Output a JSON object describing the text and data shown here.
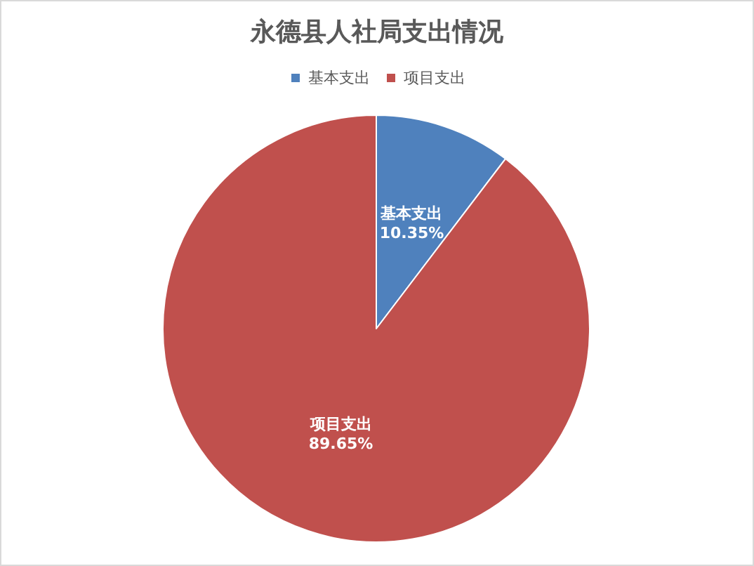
{
  "chart_data": {
    "type": "pie",
    "title": "永德县人社局支出情况",
    "categories": [
      "基本支出",
      "项目支出"
    ],
    "values": [
      10.35,
      89.65
    ],
    "colors": [
      "#4f81bd",
      "#c0504d"
    ],
    "value_labels": [
      "10.35%",
      "89.65%"
    ],
    "legend": "top"
  }
}
